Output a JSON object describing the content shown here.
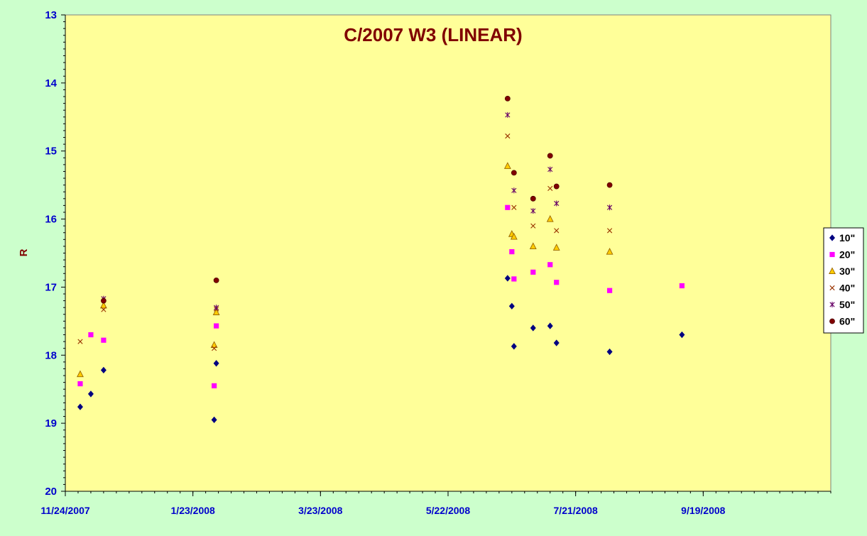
{
  "chart_data": {
    "type": "scatter",
    "title": "C/2007 W3 (LINEAR)",
    "xlabel": "",
    "ylabel": "R",
    "x_axis": {
      "type": "date",
      "min": "2007-11-24",
      "max": "2008-11-18",
      "major_ticks": [
        "2007-11-24",
        "2008-01-23",
        "2008-03-23",
        "2008-05-22",
        "2008-07-21",
        "2008-09-19"
      ],
      "tick_labels": [
        "11/24/2007",
        "1/23/2008",
        "3/23/2008",
        "5/22/2008",
        "7/21/2008",
        "9/19/2008"
      ]
    },
    "y_axis": {
      "reversed": true,
      "min": 13,
      "max": 20,
      "major_ticks": [
        13,
        14,
        15,
        16,
        17,
        18,
        19,
        20
      ],
      "tick_labels": [
        "13",
        "14",
        "15",
        "16",
        "17",
        "18",
        "19",
        "20"
      ]
    },
    "grid": false,
    "legend_position": "right",
    "colors": {
      "outer_background": "#ccffcc",
      "plot_background": "#ffff99",
      "title": "#800000",
      "ylabel": "#800000",
      "tick_labels": "#0000cc"
    },
    "series": [
      {
        "name": "10\"",
        "marker": "diamond",
        "color": "#000080",
        "points": [
          {
            "x": "2007-12-01",
            "y": 18.76
          },
          {
            "x": "2007-12-06",
            "y": 18.57
          },
          {
            "x": "2007-12-12",
            "y": 18.22
          },
          {
            "x": "2008-02-02",
            "y": 18.95
          },
          {
            "x": "2008-02-03",
            "y": 18.12
          },
          {
            "x": "2008-06-19",
            "y": 16.87
          },
          {
            "x": "2008-06-21",
            "y": 17.28
          },
          {
            "x": "2008-06-22",
            "y": 17.87
          },
          {
            "x": "2008-07-01",
            "y": 17.6
          },
          {
            "x": "2008-07-09",
            "y": 17.57
          },
          {
            "x": "2008-07-12",
            "y": 17.82
          },
          {
            "x": "2008-08-06",
            "y": 17.95
          },
          {
            "x": "2008-09-09",
            "y": 17.7
          }
        ]
      },
      {
        "name": "20\"",
        "marker": "square",
        "color": "#ff00ff",
        "points": [
          {
            "x": "2007-12-01",
            "y": 18.42
          },
          {
            "x": "2007-12-06",
            "y": 17.7
          },
          {
            "x": "2007-12-12",
            "y": 17.78
          },
          {
            "x": "2008-02-02",
            "y": 18.45
          },
          {
            "x": "2008-02-03",
            "y": 17.57
          },
          {
            "x": "2008-06-19",
            "y": 15.83
          },
          {
            "x": "2008-06-21",
            "y": 16.48
          },
          {
            "x": "2008-06-22",
            "y": 16.88
          },
          {
            "x": "2008-07-01",
            "y": 16.78
          },
          {
            "x": "2008-07-09",
            "y": 16.67
          },
          {
            "x": "2008-07-12",
            "y": 16.93
          },
          {
            "x": "2008-08-06",
            "y": 17.05
          },
          {
            "x": "2008-09-09",
            "y": 16.98
          }
        ]
      },
      {
        "name": "30\"",
        "marker": "triangle",
        "color": "#ffcc00",
        "points": [
          {
            "x": "2007-12-01",
            "y": 18.28
          },
          {
            "x": "2007-12-12",
            "y": 17.27
          },
          {
            "x": "2008-02-02",
            "y": 17.85
          },
          {
            "x": "2008-02-03",
            "y": 17.37
          },
          {
            "x": "2008-06-19",
            "y": 15.22
          },
          {
            "x": "2008-06-21",
            "y": 16.22
          },
          {
            "x": "2008-06-22",
            "y": 16.26
          },
          {
            "x": "2008-07-01",
            "y": 16.4
          },
          {
            "x": "2008-07-09",
            "y": 16.0
          },
          {
            "x": "2008-07-12",
            "y": 16.42
          },
          {
            "x": "2008-08-06",
            "y": 16.48
          }
        ]
      },
      {
        "name": "40\"",
        "marker": "x",
        "color": "#993300",
        "points": [
          {
            "x": "2007-12-01",
            "y": 17.8
          },
          {
            "x": "2007-12-12",
            "y": 17.33
          },
          {
            "x": "2008-02-02",
            "y": 17.9
          },
          {
            "x": "2008-02-03",
            "y": 17.32
          },
          {
            "x": "2008-06-19",
            "y": 14.78
          },
          {
            "x": "2008-06-22",
            "y": 15.83
          },
          {
            "x": "2008-07-01",
            "y": 16.1
          },
          {
            "x": "2008-07-09",
            "y": 15.55
          },
          {
            "x": "2008-07-12",
            "y": 16.17
          },
          {
            "x": "2008-08-06",
            "y": 16.17
          }
        ]
      },
      {
        "name": "50\"",
        "marker": "star",
        "color": "#660066",
        "points": [
          {
            "x": "2007-12-12",
            "y": 17.17
          },
          {
            "x": "2008-02-03",
            "y": 17.3
          },
          {
            "x": "2008-06-19",
            "y": 14.47
          },
          {
            "x": "2008-06-22",
            "y": 15.58
          },
          {
            "x": "2008-07-01",
            "y": 15.88
          },
          {
            "x": "2008-07-09",
            "y": 15.27
          },
          {
            "x": "2008-07-12",
            "y": 15.77
          },
          {
            "x": "2008-08-06",
            "y": 15.83
          }
        ]
      },
      {
        "name": "60\"",
        "marker": "circle",
        "color": "#800000",
        "points": [
          {
            "x": "2007-12-12",
            "y": 17.2
          },
          {
            "x": "2008-02-03",
            "y": 16.9
          },
          {
            "x": "2008-06-19",
            "y": 14.23
          },
          {
            "x": "2008-06-22",
            "y": 15.32
          },
          {
            "x": "2008-07-01",
            "y": 15.7
          },
          {
            "x": "2008-07-09",
            "y": 15.07
          },
          {
            "x": "2008-07-12",
            "y": 15.52
          },
          {
            "x": "2008-08-06",
            "y": 15.5
          }
        ]
      }
    ]
  }
}
